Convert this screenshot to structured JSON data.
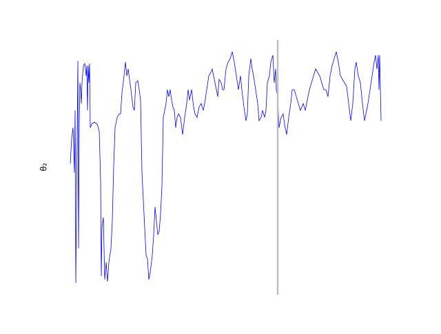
{
  "chart_data": {
    "type": "line",
    "ylabel": "θ₂",
    "x": [
      0,
      2,
      4,
      6,
      7,
      8,
      9,
      10,
      11,
      12,
      13,
      14,
      15,
      16,
      17,
      19,
      21,
      23,
      24,
      25,
      26,
      27,
      28,
      29,
      31,
      35,
      39,
      42,
      44,
      45,
      46,
      48,
      50,
      52,
      54,
      56,
      59,
      61,
      63,
      65,
      68,
      71,
      73,
      75,
      78,
      80,
      82,
      84,
      86,
      88,
      91,
      93,
      95,
      98,
      100,
      102,
      104,
      106,
      108,
      110,
      112,
      114,
      116,
      119,
      121,
      123,
      125,
      127,
      129,
      131,
      133,
      135,
      137,
      139,
      141,
      143,
      145,
      147,
      149,
      151,
      153,
      155,
      157,
      160,
      163,
      166,
      169,
      171,
      173,
      176,
      179,
      181,
      184,
      187,
      190,
      193,
      195,
      198,
      201,
      204,
      206,
      208,
      211,
      214,
      216,
      219,
      221,
      223,
      226,
      229,
      232,
      235,
      238,
      241,
      244,
      247,
      249,
      252,
      255,
      257,
      259,
      262,
      264,
      266,
      269,
      272,
      274,
      277,
      279,
      282,
      284,
      286,
      289,
      291,
      294,
      296,
      298,
      299,
      301,
      303,
      306,
      309,
      311,
      314,
      317,
      320,
      322,
      325,
      328,
      331,
      334,
      338,
      341,
      344,
      347,
      350,
      353,
      356,
      359,
      362,
      365,
      368,
      371,
      374,
      377,
      380,
      383,
      386,
      389,
      392,
      395,
      398,
      401,
      404,
      407,
      410,
      413,
      415,
      418,
      421,
      424,
      427,
      429,
      432,
      435,
      438,
      441,
      443,
      445,
      447,
      448,
      449,
      451
    ],
    "series": [
      {
        "color": "#0000ff",
        "values": [
          190,
          227,
          242,
          177,
          267,
          17,
          127,
          227,
          339,
          67,
          247,
          307,
          297,
          277,
          307,
          332,
          335,
          317,
          332,
          267,
          332,
          307,
          335,
          242,
          247,
          250,
          247,
          237,
          167,
          27,
          97,
          112,
          22,
          47,
          19,
          47,
          67,
          107,
          187,
          242,
          257,
          262,
          262,
          292,
          317,
          337,
          317,
          327,
          312,
          297,
          272,
          267,
          307,
          310,
          297,
          282,
          177,
          137,
          97,
          57,
          52,
          22,
          32,
          57,
          87,
          127,
          107,
          87,
          92,
          117,
          157,
          257,
          267,
          277,
          297,
          287,
          297,
          282,
          272,
          267,
          242,
          257,
          262,
          257,
          232,
          257,
          277,
          297,
          282,
          297,
          272,
          262,
          257,
          272,
          277,
          267,
          277,
          297,
          317,
          322,
          327,
          317,
          302,
          287,
          312,
          307,
          297,
          297,
          327,
          337,
          342,
          352,
          337,
          317,
          297,
          317,
          297,
          272,
          252,
          262,
          317,
          342,
          327,
          317,
          297,
          277,
          252,
          257,
          267,
          257,
          267,
          307,
          317,
          337,
          347,
          307,
          327,
          297,
          287,
          242,
          257,
          262,
          247,
          232,
          257,
          277,
          297,
          297,
          287,
          277,
          267,
          277,
          267,
          282,
          297,
          307,
          317,
          327,
          322,
          317,
          307,
          297,
          297,
          287,
          317,
          332,
          342,
          352,
          337,
          317,
          312,
          307,
          302,
          277,
          252,
          277,
          327,
          337,
          317,
          307,
          277,
          252,
          262,
          277,
          297,
          317,
          337,
          347,
          327,
          347,
          297,
          347,
          252
        ]
      }
    ],
    "vline": 301,
    "vline_color": "#c0c0c0",
    "xlim": [
      -22,
      474
    ],
    "ylim": [
      0,
      369
    ]
  }
}
